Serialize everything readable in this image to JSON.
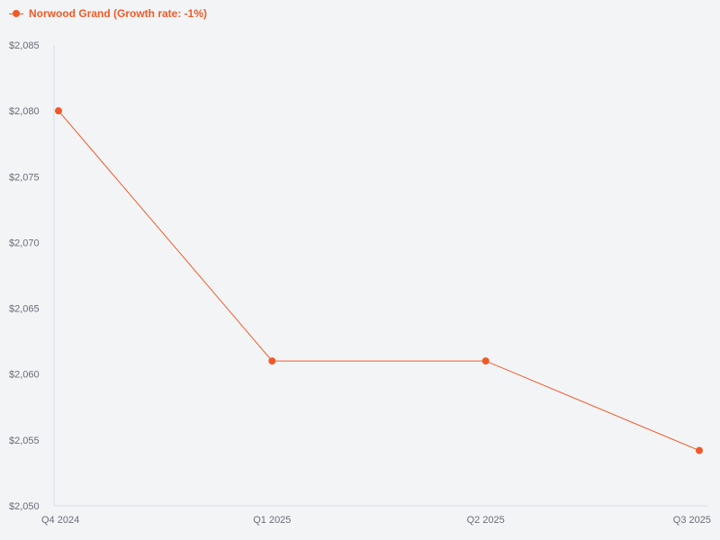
{
  "chart_data": {
    "type": "line",
    "title": "",
    "xlabel": "",
    "ylabel": "",
    "categories": [
      "Q4 2024",
      "Q1 2025",
      "Q2 2025",
      "Q3 2025"
    ],
    "series": [
      {
        "name": "Norwood Grand (Growth rate: -1%)",
        "values": [
          2080,
          2061,
          2061,
          2054.2
        ],
        "color": "#f05a28"
      }
    ],
    "ylim": [
      2050,
      2085
    ],
    "yticks": [
      2050,
      2055,
      2060,
      2065,
      2070,
      2075,
      2080,
      2085
    ],
    "ytick_labels": [
      "$2,050",
      "$2,055",
      "$2,060",
      "$2,065",
      "$2,070",
      "$2,075",
      "$2,080",
      "$2,085"
    ],
    "grid": false,
    "legend_position": "top-left",
    "axis_color": "#d8dae8"
  }
}
